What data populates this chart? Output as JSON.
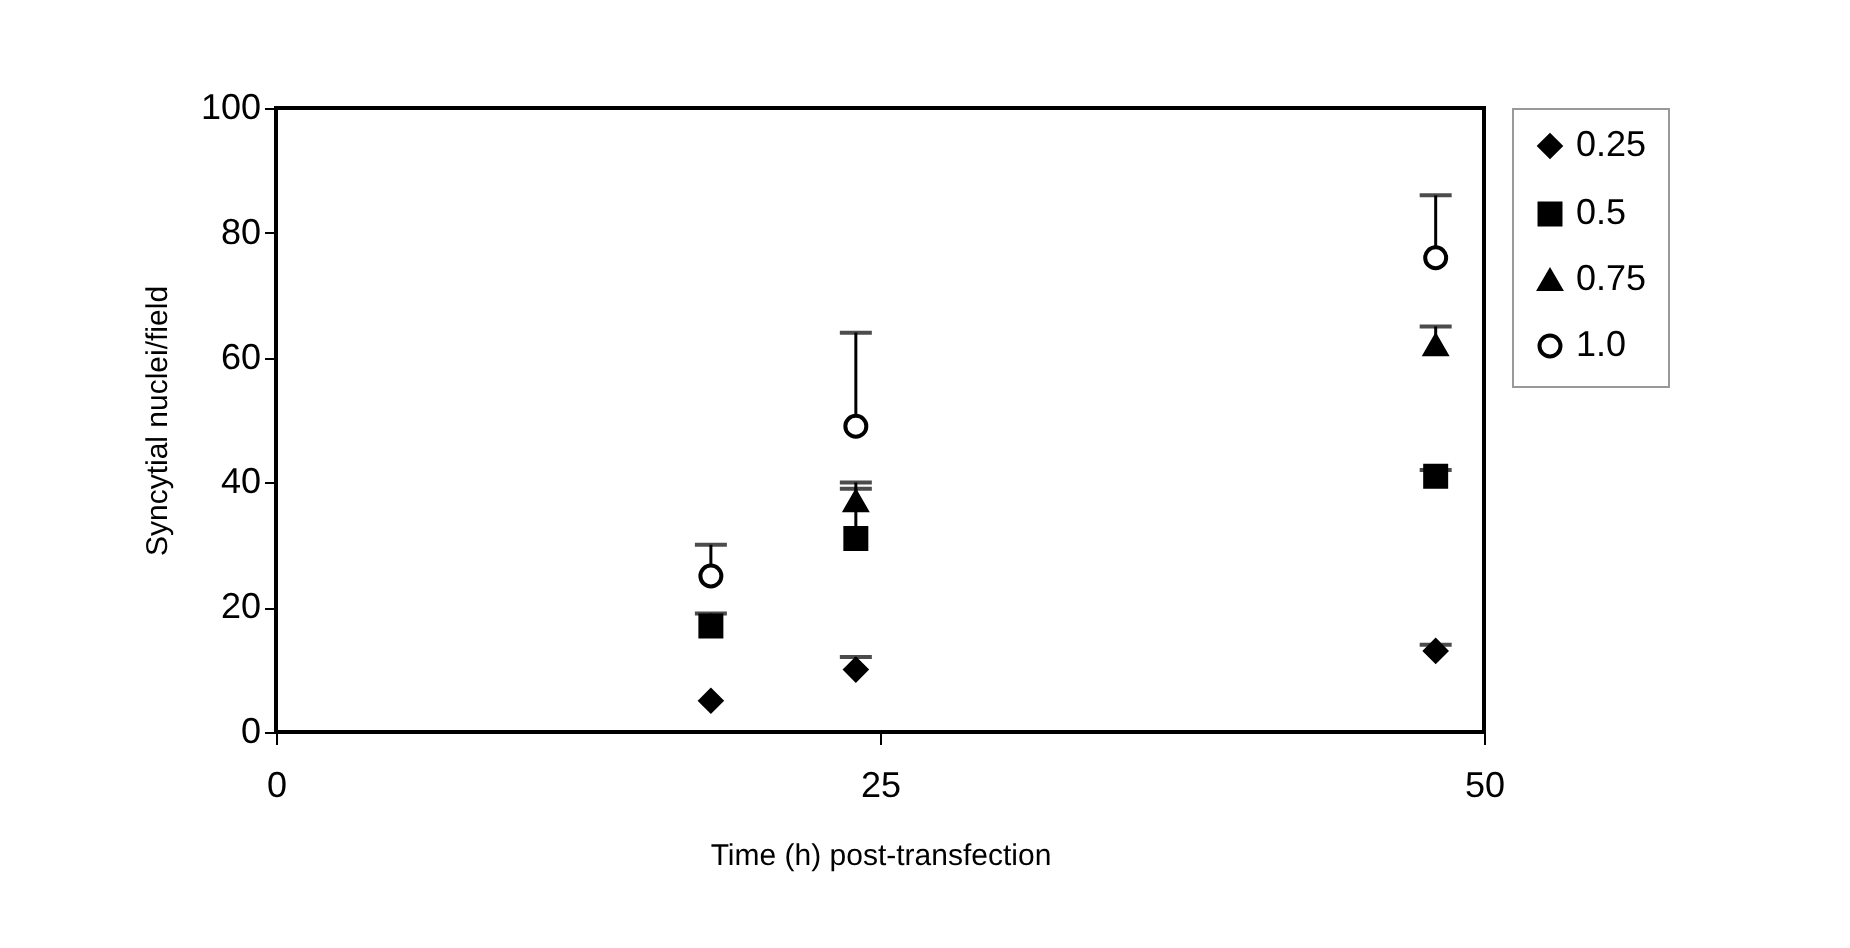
{
  "chart_data": {
    "type": "scatter",
    "xlabel": "Time (h) post-transfection",
    "ylabel": "Syncytial nuclei/field",
    "xlim": [
      0,
      50
    ],
    "xticks": [
      0,
      25,
      50
    ],
    "ylim": [
      0,
      100
    ],
    "yticks": [
      0,
      20,
      40,
      60,
      80,
      100
    ],
    "grid": false,
    "legend": "right",
    "series": [
      {
        "name": "0.25",
        "color": "#000000",
        "marker": "diamond",
        "x": [
          18,
          24,
          48
        ],
        "values": [
          5,
          10,
          13
        ],
        "errors": [
          null,
          [
            10,
            12
          ],
          [
            13,
            14
          ]
        ]
      },
      {
        "name": "0.5",
        "color": "#000000",
        "marker": "square",
        "x": [
          18,
          24,
          48
        ],
        "values": [
          17,
          31,
          41
        ],
        "errors": [
          [
            17,
            19
          ],
          [
            31,
            39
          ],
          [
            41,
            42
          ]
        ]
      },
      {
        "name": "0.75",
        "color": "#000000",
        "marker": "triangle",
        "x": [
          24,
          48
        ],
        "values": [
          37,
          62
        ],
        "errors": [
          [
            37,
            40
          ],
          [
            62,
            65
          ]
        ]
      },
      {
        "name": "1.0",
        "color": "#000000",
        "marker": "circle-open",
        "x": [
          18,
          24,
          48
        ],
        "values": [
          25,
          49,
          76
        ],
        "errors": [
          [
            25,
            30
          ],
          [
            49,
            64
          ],
          [
            76,
            86
          ]
        ]
      }
    ]
  }
}
